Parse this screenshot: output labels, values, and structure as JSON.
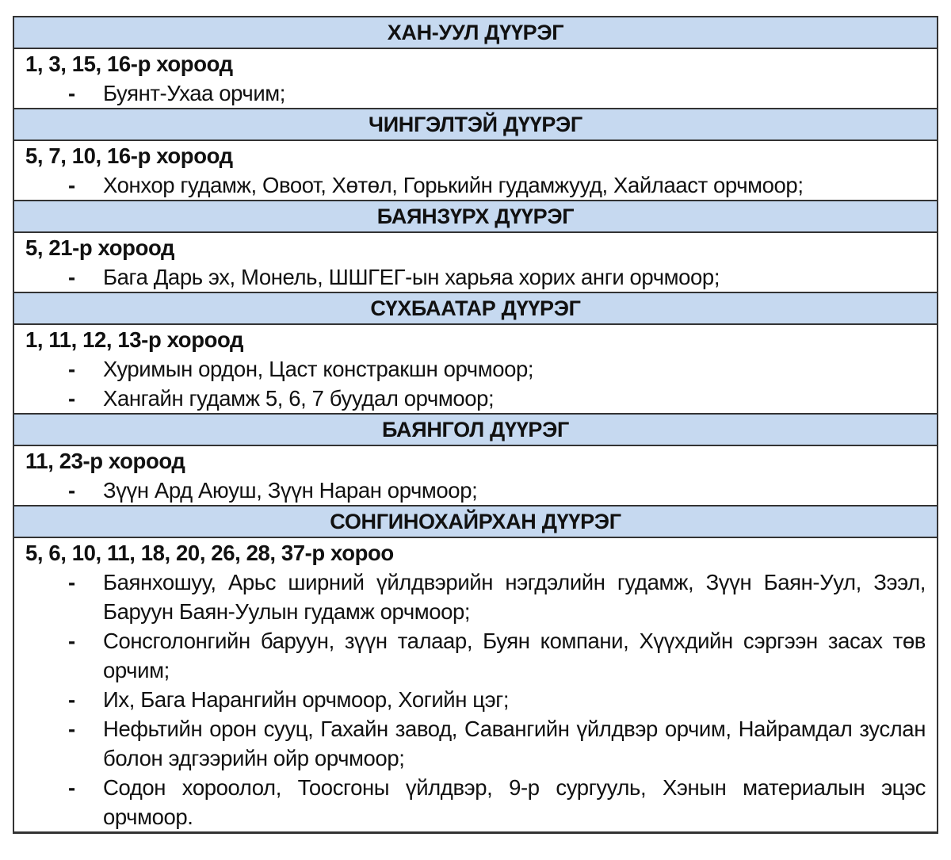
{
  "sections": [
    {
      "district": "ХАН-УУЛ ДҮҮРЭГ",
      "khoroo": "1, 3, 15, 16-р хороод",
      "items": [
        "Буянт-Ухаа орчим;"
      ]
    },
    {
      "district": "ЧИНГЭЛТЭЙ ДҮҮРЭГ",
      "khoroo": "5, 7, 10, 16-р хороод",
      "items": [
        "Хонхор гудамж, Овоот, Хөтөл, Горькийн гудамжууд, Хайлааст орчмоор;"
      ]
    },
    {
      "district": "БАЯНЗҮРХ ДҮҮРЭГ",
      "khoroo": "5, 21-р хороод",
      "items": [
        "Бага Дарь эх, Монель, ШШГЕГ-ын харьяа хорих анги орчмоор;"
      ]
    },
    {
      "district": "СҮХБААТАР ДҮҮРЭГ",
      "khoroo": "1, 11, 12, 13-р хороод",
      "items": [
        "Хуримын ордон, Цаст констракшн орчмоор;",
        "Хангайн гудамж 5, 6, 7 буудал орчмоор;"
      ]
    },
    {
      "district": "БАЯНГОЛ ДҮҮРЭГ",
      "khoroo": "11, 23-р хороод",
      "items": [
        "Зүүн Ард Аюуш, Зүүн Наран орчмоор;"
      ]
    },
    {
      "district": "СОНГИНОХАЙРХАН ДҮҮРЭГ",
      "khoroo": "5, 6, 10, 11, 18, 20, 26, 28, 37-р хороо",
      "items": [
        "Баянхошуу, Арьс ширний үйлдвэрийн нэгдэлийн гудамж, Зүүн Баян-Уул, Зээл, Баруун Баян-Уулын гудамж орчмоор;",
        "Сонсголонгийн баруун, зүүн талаар, Буян компани, Хүүхдийн сэргээн засах төв орчим;",
        "Их, Бага Нарангийн орчмоор, Хогийн цэг;",
        "Нефьтийн орон сууц, Гахайн завод, Савангийн үйлдвэр орчим, Найрамдал зуслан болон эдгээрийн ойр орчмоор;",
        "Содон хороолол, Тоосгоны үйлдвэр, 9-р сургууль, Хэнын материалын эцэс орчмоор."
      ]
    }
  ],
  "bullet": "-",
  "colors": {
    "header_bg": "#c6d9f0",
    "border": "#333333"
  }
}
